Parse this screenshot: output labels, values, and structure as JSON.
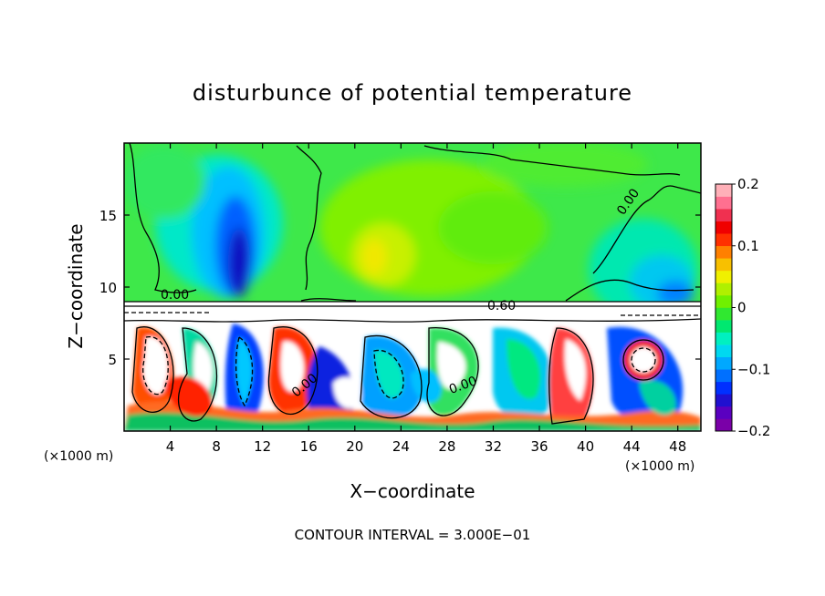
{
  "chart_data": {
    "type": "heatmap",
    "title": "disturbunce of potential temperature",
    "xlabel": "X−coordinate",
    "ylabel": "Z−coordinate",
    "x_unit_label": "(×1000 m)",
    "z_unit_label": "(×1000 m)",
    "xlim": [
      0,
      50
    ],
    "ylim": [
      0,
      20
    ],
    "x_ticks": [
      4,
      8,
      12,
      16,
      20,
      24,
      28,
      32,
      36,
      40,
      44,
      48
    ],
    "x_tick_labels": [
      "4",
      "8",
      "12",
      "16",
      "20",
      "24",
      "28",
      "32",
      "36",
      "40",
      "44",
      "48"
    ],
    "y_ticks": [
      5,
      10,
      15
    ],
    "y_tick_labels": [
      "5",
      "10",
      "15"
    ],
    "colorbar": {
      "range": [
        -0.2,
        0.2
      ],
      "tick_labels": [
        "0.2",
        "0.1",
        "0",
        "−0.1",
        "−0.2"
      ],
      "tick_values": [
        0.2,
        0.1,
        0,
        -0.1,
        -0.2
      ],
      "colors": [
        "#7a00a8",
        "#5a00c0",
        "#2010d0",
        "#0030ff",
        "#0070ff",
        "#00a8ff",
        "#00d8f0",
        "#00f0c0",
        "#00e870",
        "#30e830",
        "#70f000",
        "#b0f000",
        "#f0f000",
        "#f8c000",
        "#ff8000",
        "#ff3000",
        "#f00000",
        "#f03050",
        "#ff7090",
        "#ffb0b8"
      ]
    },
    "contour_labels": [
      {
        "text": "0.00",
        "x": 4.5,
        "z": 9.5
      },
      {
        "text": "0.60",
        "x": 33.2,
        "z": 8.9
      },
      {
        "text": "0.00",
        "x": 43.5,
        "z": 16.3
      },
      {
        "text": "0.00",
        "x": 28.3,
        "z": 3.0
      },
      {
        "text": "0.00",
        "x": 15.0,
        "z": 4.0
      }
    ],
    "contour_interval_text": "CONTOUR INTERVAL = 3.000E−01"
  }
}
